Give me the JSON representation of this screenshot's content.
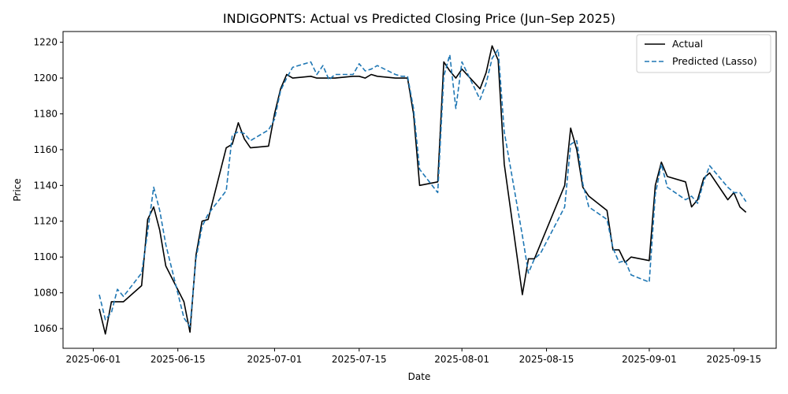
{
  "chart_data": {
    "type": "line",
    "title": "INDIGOPNTS: Actual vs Predicted Closing Price (Jun–Sep 2025)",
    "xlabel": "Date",
    "ylabel": "Price",
    "xlim": [
      "2025-05-27",
      "2025-09-22"
    ],
    "ylim": [
      1049,
      1226
    ],
    "x_ticks": [
      "2025-06-01",
      "2025-06-15",
      "2025-07-01",
      "2025-07-15",
      "2025-08-01",
      "2025-08-15",
      "2025-09-01",
      "2025-09-15"
    ],
    "y_ticks": [
      1060,
      1080,
      1100,
      1120,
      1140,
      1160,
      1180,
      1200,
      1220
    ],
    "grid": false,
    "legend_position": "top-right",
    "series": [
      {
        "name": "Actual",
        "color": "#000000",
        "style": "solid",
        "points": [
          [
            "2025-06-02",
            1071
          ],
          [
            "2025-06-03",
            1057
          ],
          [
            "2025-06-04",
            1075
          ],
          [
            "2025-06-05",
            1075
          ],
          [
            "2025-06-06",
            1075
          ],
          [
            "2025-06-09",
            1084
          ],
          [
            "2025-06-10",
            1121
          ],
          [
            "2025-06-11",
            1128
          ],
          [
            "2025-06-12",
            1115
          ],
          [
            "2025-06-13",
            1095
          ],
          [
            "2025-06-16",
            1075
          ],
          [
            "2025-06-17",
            1058
          ],
          [
            "2025-06-18",
            1101
          ],
          [
            "2025-06-19",
            1120
          ],
          [
            "2025-06-20",
            1121
          ],
          [
            "2025-06-23",
            1161
          ],
          [
            "2025-06-24",
            1163
          ],
          [
            "2025-06-25",
            1175
          ],
          [
            "2025-06-26",
            1166
          ],
          [
            "2025-06-27",
            1161
          ],
          [
            "2025-06-30",
            1162
          ],
          [
            "2025-07-01",
            1180
          ],
          [
            "2025-07-02",
            1194
          ],
          [
            "2025-07-03",
            1202
          ],
          [
            "2025-07-04",
            1200
          ],
          [
            "2025-07-07",
            1201
          ],
          [
            "2025-07-08",
            1200
          ],
          [
            "2025-07-09",
            1200
          ],
          [
            "2025-07-10",
            1200
          ],
          [
            "2025-07-11",
            1200
          ],
          [
            "2025-07-14",
            1201
          ],
          [
            "2025-07-15",
            1201
          ],
          [
            "2025-07-16",
            1200
          ],
          [
            "2025-07-17",
            1202
          ],
          [
            "2025-07-18",
            1201
          ],
          [
            "2025-07-21",
            1200
          ],
          [
            "2025-07-22",
            1200
          ],
          [
            "2025-07-23",
            1200
          ],
          [
            "2025-07-24",
            1180
          ],
          [
            "2025-07-25",
            1140
          ],
          [
            "2025-07-28",
            1142
          ],
          [
            "2025-07-29",
            1209
          ],
          [
            "2025-07-30",
            1204
          ],
          [
            "2025-07-31",
            1200
          ],
          [
            "2025-08-01",
            1205
          ],
          [
            "2025-08-04",
            1194
          ],
          [
            "2025-08-05",
            1203
          ],
          [
            "2025-08-06",
            1218
          ],
          [
            "2025-08-07",
            1210
          ],
          [
            "2025-08-08",
            1152
          ],
          [
            "2025-08-11",
            1079
          ],
          [
            "2025-08-12",
            1099
          ],
          [
            "2025-08-13",
            1099
          ],
          [
            "2025-08-18",
            1140
          ],
          [
            "2025-08-19",
            1172
          ],
          [
            "2025-08-20",
            1160
          ],
          [
            "2025-08-21",
            1139
          ],
          [
            "2025-08-22",
            1134
          ],
          [
            "2025-08-25",
            1126
          ],
          [
            "2025-08-26",
            1104
          ],
          [
            "2025-08-27",
            1104
          ],
          [
            "2025-08-28",
            1097
          ],
          [
            "2025-08-29",
            1100
          ],
          [
            "2025-09-01",
            1098
          ],
          [
            "2025-09-02",
            1140
          ],
          [
            "2025-09-03",
            1153
          ],
          [
            "2025-09-04",
            1145
          ],
          [
            "2025-09-07",
            1142
          ],
          [
            "2025-09-08",
            1128
          ],
          [
            "2025-09-09",
            1132
          ],
          [
            "2025-09-10",
            1144
          ],
          [
            "2025-09-11",
            1147
          ],
          [
            "2025-09-14",
            1132
          ],
          [
            "2025-09-15",
            1136
          ],
          [
            "2025-09-16",
            1128
          ],
          [
            "2025-09-17",
            1125
          ]
        ]
      },
      {
        "name": "Predicted (Lasso)",
        "color": "#1f77b4",
        "style": "dashed",
        "points": [
          [
            "2025-06-02",
            1079
          ],
          [
            "2025-06-03",
            1065
          ],
          [
            "2025-06-04",
            1069
          ],
          [
            "2025-06-05",
            1082
          ],
          [
            "2025-06-06",
            1078
          ],
          [
            "2025-06-09",
            1091
          ],
          [
            "2025-06-10",
            1114
          ],
          [
            "2025-06-11",
            1139
          ],
          [
            "2025-06-12",
            1126
          ],
          [
            "2025-06-13",
            1107
          ],
          [
            "2025-06-16",
            1066
          ],
          [
            "2025-06-17",
            1061
          ],
          [
            "2025-06-18",
            1099
          ],
          [
            "2025-06-19",
            1117
          ],
          [
            "2025-06-20",
            1124
          ],
          [
            "2025-06-23",
            1137
          ],
          [
            "2025-06-24",
            1168
          ],
          [
            "2025-06-25",
            1170
          ],
          [
            "2025-06-26",
            1169
          ],
          [
            "2025-06-27",
            1165
          ],
          [
            "2025-06-30",
            1171
          ],
          [
            "2025-07-01",
            1177
          ],
          [
            "2025-07-02",
            1193
          ],
          [
            "2025-07-03",
            1200
          ],
          [
            "2025-07-04",
            1206
          ],
          [
            "2025-07-07",
            1209
          ],
          [
            "2025-07-08",
            1202
          ],
          [
            "2025-07-09",
            1207
          ],
          [
            "2025-07-10",
            1199
          ],
          [
            "2025-07-11",
            1202
          ],
          [
            "2025-07-14",
            1202
          ],
          [
            "2025-07-15",
            1208
          ],
          [
            "2025-07-16",
            1204
          ],
          [
            "2025-07-17",
            1205
          ],
          [
            "2025-07-18",
            1207
          ],
          [
            "2025-07-21",
            1202
          ],
          [
            "2025-07-22",
            1201
          ],
          [
            "2025-07-23",
            1201
          ],
          [
            "2025-07-24",
            1183
          ],
          [
            "2025-07-25",
            1149
          ],
          [
            "2025-07-28",
            1136
          ],
          [
            "2025-07-29",
            1201
          ],
          [
            "2025-07-30",
            1213
          ],
          [
            "2025-07-31",
            1183
          ],
          [
            "2025-08-01",
            1209
          ],
          [
            "2025-08-04",
            1188
          ],
          [
            "2025-08-05",
            1197
          ],
          [
            "2025-08-06",
            1211
          ],
          [
            "2025-08-07",
            1216
          ],
          [
            "2025-08-08",
            1170
          ],
          [
            "2025-08-11",
            1112
          ],
          [
            "2025-08-12",
            1091
          ],
          [
            "2025-08-13",
            1099
          ],
          [
            "2025-08-14",
            1102
          ],
          [
            "2025-08-18",
            1128
          ],
          [
            "2025-08-19",
            1163
          ],
          [
            "2025-08-20",
            1165
          ],
          [
            "2025-08-21",
            1141
          ],
          [
            "2025-08-22",
            1128
          ],
          [
            "2025-08-25",
            1121
          ],
          [
            "2025-08-26",
            1105
          ],
          [
            "2025-08-27",
            1097
          ],
          [
            "2025-08-28",
            1098
          ],
          [
            "2025-08-29",
            1090
          ],
          [
            "2025-09-01",
            1086
          ],
          [
            "2025-09-02",
            1135
          ],
          [
            "2025-09-03",
            1152
          ],
          [
            "2025-09-04",
            1139
          ],
          [
            "2025-09-07",
            1132
          ],
          [
            "2025-09-08",
            1134
          ],
          [
            "2025-09-09",
            1130
          ],
          [
            "2025-09-10",
            1142
          ],
          [
            "2025-09-11",
            1151
          ],
          [
            "2025-09-14",
            1139
          ],
          [
            "2025-09-15",
            1136
          ],
          [
            "2025-09-16",
            1136
          ],
          [
            "2025-09-17",
            1131
          ]
        ]
      }
    ]
  }
}
